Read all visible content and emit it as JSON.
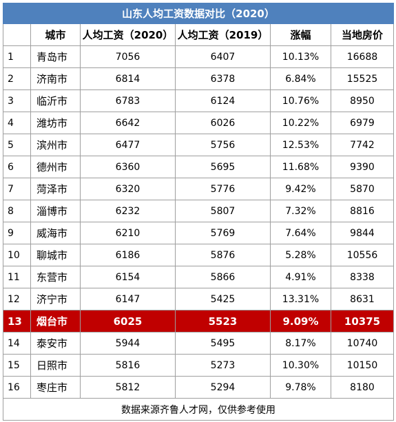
{
  "title": "山东人均工资数据对比（2020）",
  "headers": [
    "",
    "城市",
    "人均工资（2020）",
    "人均工资（2019）",
    "涨幅",
    "当地房价"
  ],
  "rows": [
    {
      "rank": "1",
      "city": "青岛市",
      "w2020": "7056",
      "w2019": "6407",
      "growth": "10.13%",
      "price": "16688"
    },
    {
      "rank": "2",
      "city": "济南市",
      "w2020": "6814",
      "w2019": "6378",
      "growth": "6.84%",
      "price": "15525"
    },
    {
      "rank": "3",
      "city": "临沂市",
      "w2020": "6783",
      "w2019": "6124",
      "growth": "10.76%",
      "price": "8950"
    },
    {
      "rank": "4",
      "city": "潍坊市",
      "w2020": "6642",
      "w2019": "6026",
      "growth": "10.22%",
      "price": "6979"
    },
    {
      "rank": "5",
      "city": "滨州市",
      "w2020": "6477",
      "w2019": "5756",
      "growth": "12.53%",
      "price": "7742"
    },
    {
      "rank": "6",
      "city": "德州市",
      "w2020": "6360",
      "w2019": "5695",
      "growth": "11.68%",
      "price": "9390"
    },
    {
      "rank": "7",
      "city": "菏泽市",
      "w2020": "6320",
      "w2019": "5776",
      "growth": "9.42%",
      "price": "5870"
    },
    {
      "rank": "8",
      "city": "淄博市",
      "w2020": "6232",
      "w2019": "5807",
      "growth": "7.32%",
      "price": "8816"
    },
    {
      "rank": "9",
      "city": "威海市",
      "w2020": "6210",
      "w2019": "5769",
      "growth": "7.64%",
      "price": "9844"
    },
    {
      "rank": "10",
      "city": "聊城市",
      "w2020": "6186",
      "w2019": "5876",
      "growth": "5.28%",
      "price": "10556"
    },
    {
      "rank": "11",
      "city": "东营市",
      "w2020": "6154",
      "w2019": "5866",
      "growth": "4.91%",
      "price": "8338"
    },
    {
      "rank": "12",
      "city": "济宁市",
      "w2020": "6147",
      "w2019": "5425",
      "growth": "13.31%",
      "price": "8631"
    },
    {
      "rank": "13",
      "city": "烟台市",
      "w2020": "6025",
      "w2019": "5523",
      "growth": "9.09%",
      "price": "10375",
      "highlight": true
    },
    {
      "rank": "14",
      "city": "泰安市",
      "w2020": "5944",
      "w2019": "5495",
      "growth": "8.17%",
      "price": "10740"
    },
    {
      "rank": "15",
      "city": "日照市",
      "w2020": "5816",
      "w2019": "5273",
      "growth": "10.30%",
      "price": "10150"
    },
    {
      "rank": "16",
      "city": "枣庄市",
      "w2020": "5812",
      "w2019": "5294",
      "growth": "9.78%",
      "price": "8180"
    }
  ],
  "footer": "数据来源齐鲁人才网，仅供参考使用",
  "colors": {
    "title_bg": "#4f81bd",
    "highlight_bg": "#c00000",
    "border": "#9e9e9e"
  }
}
